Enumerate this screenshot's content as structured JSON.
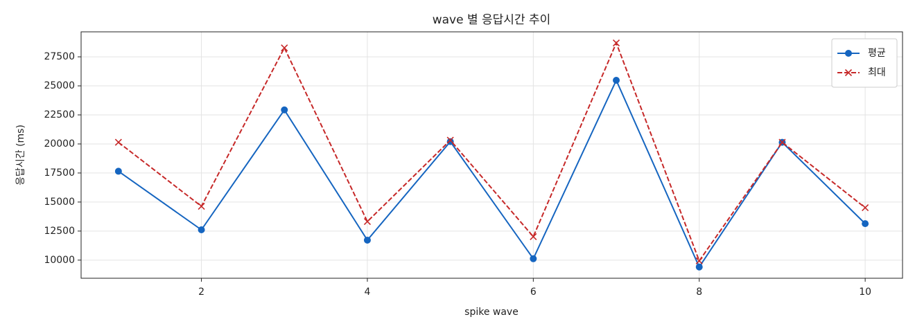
{
  "chart_data": {
    "type": "line",
    "title": "wave 별 응답시간 추이",
    "x_label": "spike wave",
    "y_label": "응답시간 (ms)",
    "x": [
      1,
      2,
      3,
      4,
      5,
      6,
      7,
      8,
      9,
      10
    ],
    "series": [
      {
        "name": "평균",
        "color": "#1565c0",
        "marker": "o",
        "linestyle": "solid",
        "values": [
          17650,
          12610,
          22930,
          11720,
          20200,
          10120,
          25480,
          9410,
          20140,
          13140
        ]
      },
      {
        "name": "최대",
        "color": "#c62828",
        "marker": "x",
        "linestyle": "dashed",
        "values": [
          20140,
          14630,
          28270,
          13320,
          20320,
          12020,
          28690,
          9940,
          20140,
          14510
        ]
      }
    ],
    "xlim": [
      0.55,
      10.45
    ],
    "xticks": [
      2,
      4,
      6,
      8,
      10
    ],
    "ylim": [
      8440,
      29650
    ],
    "yticks": [
      10000,
      12500,
      15000,
      17500,
      20000,
      22500,
      25000,
      27500
    ],
    "grid": true,
    "legend": "upper right"
  }
}
